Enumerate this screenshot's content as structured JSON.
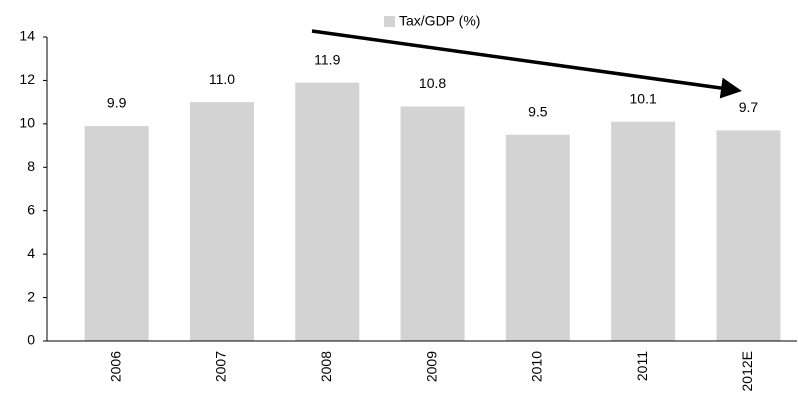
{
  "chart_data": {
    "type": "bar",
    "categories": [
      "2006",
      "2007",
      "2008",
      "2009",
      "2010",
      "2011",
      "2012E"
    ],
    "series": [
      {
        "name": "Tax/GDP (%)",
        "color": "#d3d3d3",
        "values": [
          9.9,
          11.0,
          11.9,
          10.8,
          9.5,
          10.1,
          9.7
        ],
        "value_labels": [
          "9.9",
          "11.0",
          "11.9",
          "10.8",
          "9.5",
          "10.1",
          "9.7"
        ]
      }
    ],
    "ylim": [
      0,
      14
    ],
    "yticks": [
      0,
      2,
      4,
      6,
      8,
      10,
      12,
      14
    ],
    "grid": false
  }
}
